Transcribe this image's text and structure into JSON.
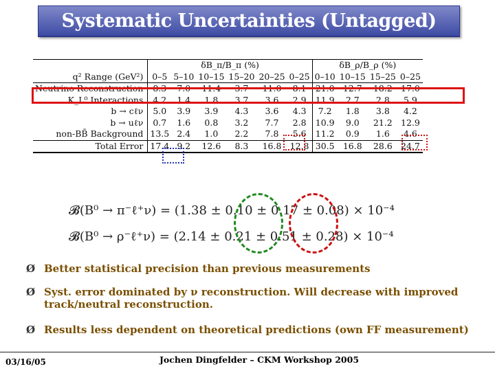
{
  "title": "Systematic Uncertainties (Untagged)",
  "table": {
    "group_headers": [
      "δB_π/B_π (%)",
      "δB_ρ/B_ρ (%)"
    ],
    "range_label": "q² Range (GeV²)",
    "ranges": [
      "0–5",
      "5–10",
      "10–15",
      "15–20",
      "20–25",
      "0–25",
      "0–10",
      "10–15",
      "15–25",
      "0–25"
    ],
    "rows": [
      {
        "label": "Neutrino Reconstruction",
        "values": [
          "8.3",
          "7.0",
          "11.4",
          "3.7",
          "11.0",
          "8.1",
          "21.0",
          "12.7",
          "18.2",
          "17.0"
        ]
      },
      {
        "label": "K_L⁰ Interactions",
        "values": [
          "4.2",
          "1.4",
          "1.8",
          "3.7",
          "3.6",
          "2.9",
          "11.9",
          "2.7",
          "2.8",
          "5.9"
        ]
      },
      {
        "label": "b → cℓν",
        "values": [
          "5.0",
          "3.9",
          "3.9",
          "4.3",
          "3.6",
          "4.3",
          "7.2",
          "1.8",
          "3.8",
          "4.2"
        ]
      },
      {
        "label": "b → uℓν",
        "values": [
          "0.7",
          "1.6",
          "0.8",
          "3.2",
          "7.7",
          "2.8",
          "10.9",
          "9.0",
          "21.2",
          "12.9"
        ]
      },
      {
        "label": "non-BB̄ Background",
        "values": [
          "13.5",
          "2.4",
          "1.0",
          "2.2",
          "7.8",
          "5.6",
          "11.2",
          "0.9",
          "1.6",
          "4.6"
        ]
      }
    ],
    "total": {
      "label": "Total Error",
      "values": [
        "17.4",
        "9.2",
        "12.6",
        "8.3",
        "16.8",
        "12.8",
        "30.5",
        "16.8",
        "28.6",
        "24.7"
      ]
    }
  },
  "equations": {
    "pi": "𝓑(B⁰ → π⁻ℓ⁺ν)  =  (1.38 ± 0.10 ± 0.17 ± 0.08) × 10⁻⁴",
    "rho": "𝓑(B⁰ → ρ⁻ℓ⁺ν)  =  (2.14 ± 0.21 ± 0.51 ± 0.28) × 10⁻⁴"
  },
  "bullets": [
    "Better statistical precision than previous measurements",
    "Syst. error dominated by ν reconstruction. Will decrease with improved track/neutral reconstruction.",
    "Results less dependent on theoretical predictions (own FF measurement)"
  ],
  "bullet_marker": "Ø",
  "footer": {
    "date": "03/16/05",
    "author": "Jochen Dingfelder – CKM Workshop 2005"
  },
  "colors": {
    "title_bg": "#4b57b0",
    "highlight_red": "#dd1111",
    "dotted_blue": "#2233aa",
    "dashed_green": "#1f8a1f",
    "bullet_text": "#7a4f00"
  }
}
